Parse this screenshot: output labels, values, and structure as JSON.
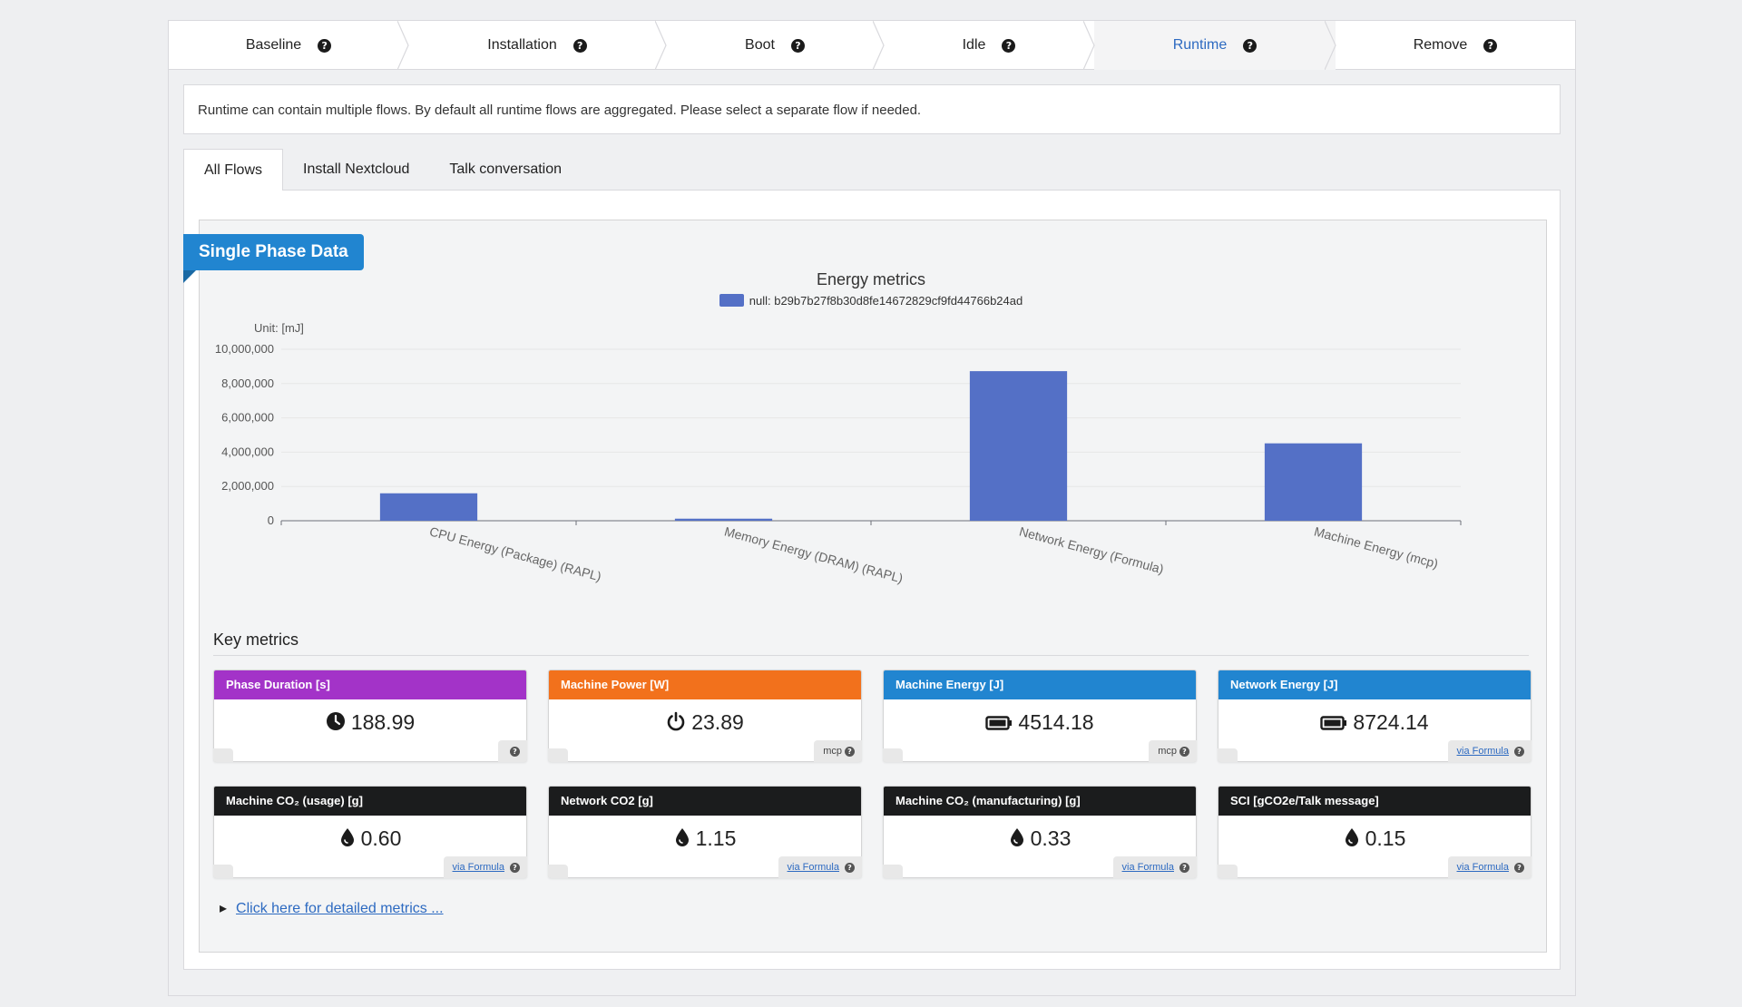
{
  "steps": [
    {
      "label": "Baseline",
      "active": false
    },
    {
      "label": "Installation",
      "active": false
    },
    {
      "label": "Boot",
      "active": false
    },
    {
      "label": "Idle",
      "active": false
    },
    {
      "label": "Runtime",
      "active": true
    },
    {
      "label": "Remove",
      "active": false
    }
  ],
  "info_text": "Runtime can contain multiple flows. By default all runtime flows are aggregated. Please select a separate flow if needed.",
  "tabs": [
    {
      "label": "All Flows",
      "active": true
    },
    {
      "label": "Install Nextcloud",
      "active": false
    },
    {
      "label": "Talk conversation",
      "active": false
    }
  ],
  "ribbon_label": "Single Phase Data",
  "chart_data": {
    "type": "bar",
    "title": "Energy metrics",
    "legend_position": "top-center",
    "series": [
      {
        "name": "null: b29b7b27f8b30d8fe14672829cf9fd44766b24ad",
        "color": "#5470c6",
        "values": [
          1600000,
          120000,
          8724140,
          4514180
        ]
      }
    ],
    "categories": [
      "CPU Energy (Package) (RAPL)",
      "Memory Energy (DRAM) (RAPL)",
      "Network Energy (Formula)",
      "Machine Energy (mcp)"
    ],
    "ylabel": "Unit: [mJ]",
    "ylim": [
      0,
      10000000
    ],
    "yticks": [
      "0",
      "2,000,000",
      "4,000,000",
      "6,000,000",
      "8,000,000",
      "10,000,000"
    ],
    "grid": true
  },
  "key_metrics": {
    "title": "Key metrics",
    "cards": [
      {
        "header": "Phase Duration [s]",
        "color": "#a333c8",
        "icon": "clock-icon",
        "value": "188.99",
        "source": "",
        "source_link": false
      },
      {
        "header": "Machine Power [W]",
        "color": "#f2711c",
        "icon": "power-icon",
        "value": "23.89",
        "source": "mcp",
        "source_link": false
      },
      {
        "header": "Machine Energy [J]",
        "color": "#2185d0",
        "icon": "battery-icon",
        "value": "4514.18",
        "source": "mcp",
        "source_link": false
      },
      {
        "header": "Network Energy [J]",
        "color": "#2185d0",
        "icon": "battery-icon",
        "value": "8724.14",
        "source": "via Formula",
        "source_link": true
      },
      {
        "header": "Machine CO₂ (usage) [g]",
        "color": "#1b1c1d",
        "icon": "drop-icon",
        "value": "0.60",
        "source": "via Formula",
        "source_link": true
      },
      {
        "header": "Network CO2 [g]",
        "color": "#1b1c1d",
        "icon": "drop-icon",
        "value": "1.15",
        "source": "via Formula",
        "source_link": true
      },
      {
        "header": "Machine CO₂ (manufacturing) [g]",
        "color": "#1b1c1d",
        "icon": "drop-icon",
        "value": "0.33",
        "source": "via Formula",
        "source_link": true
      },
      {
        "header": "SCI [gCO2e/Talk message]",
        "color": "#1b1c1d",
        "icon": "drop-icon",
        "value": "0.15",
        "source": "via Formula",
        "source_link": true
      }
    ]
  },
  "details_link": "Click here for detailed metrics ..."
}
